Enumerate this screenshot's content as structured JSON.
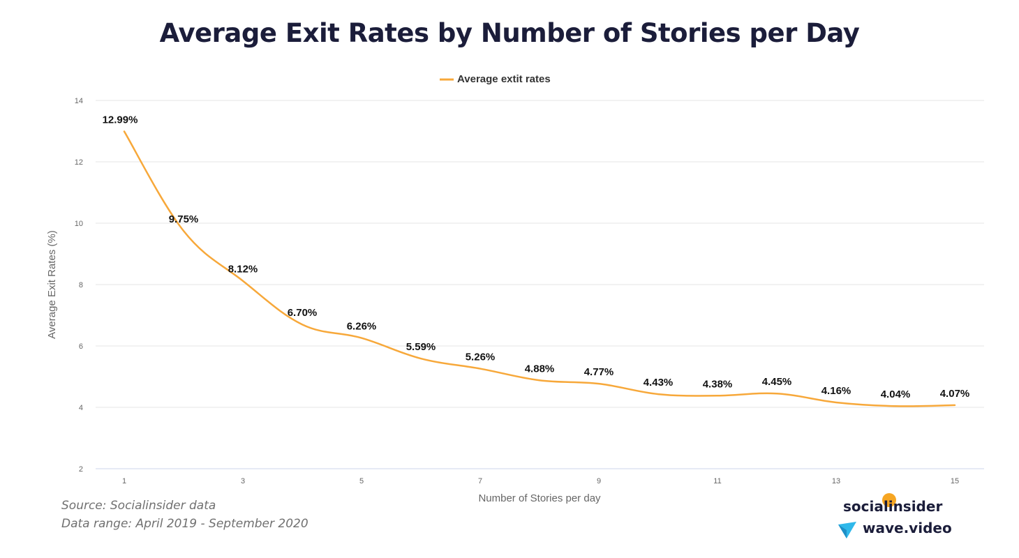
{
  "chart_data": {
    "type": "line",
    "title": "Average Exit Rates by Number of Stories per Day",
    "xlabel": "Number of Stories per day",
    "ylabel": "Average Exit Rates (%)",
    "x": [
      1,
      2,
      3,
      4,
      5,
      6,
      7,
      8,
      9,
      10,
      11,
      12,
      13,
      14,
      15
    ],
    "xticks": [
      1,
      3,
      5,
      7,
      9,
      11,
      13,
      15
    ],
    "yticks": [
      2,
      4,
      6,
      8,
      10,
      12,
      14
    ],
    "ylim": [
      2,
      14
    ],
    "xlim": [
      1,
      15
    ],
    "grid": true,
    "legend": "top-center",
    "series": [
      {
        "name": "Average extit rates",
        "color": "#f7a83a",
        "values": [
          12.99,
          9.75,
          8.12,
          6.7,
          6.26,
          5.59,
          5.26,
          4.88,
          4.77,
          4.43,
          4.38,
          4.45,
          4.16,
          4.04,
          4.07
        ],
        "labels": [
          "12.99%",
          "9.75%",
          "8.12%",
          "6.70%",
          "6.26%",
          "5.59%",
          "5.26%",
          "4.88%",
          "4.77%",
          "4.43%",
          "4.38%",
          "4.45%",
          "4.16%",
          "4.04%",
          "4.07%"
        ]
      }
    ]
  },
  "footer": {
    "source": "Source: Socialinsider data",
    "range": "Data range: April 2019 - September 2020"
  },
  "brands": {
    "first": "socialinsider",
    "second": "wave.video"
  },
  "colors": {
    "title": "#1b1d3a",
    "line": "#f7a83a",
    "brand_dot": "#f6a623",
    "wave_logo": "#2fb8ea"
  },
  "icons": {
    "wave_logo": "wave-video-logo-icon",
    "brand_dot": "socialinsider-dot-icon"
  }
}
